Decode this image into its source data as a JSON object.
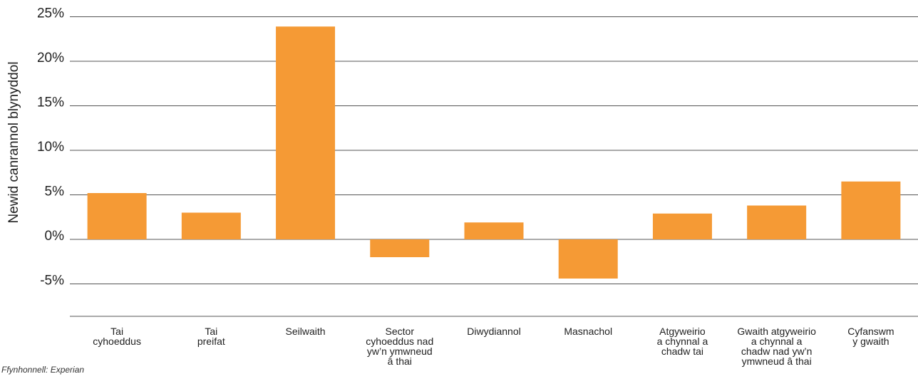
{
  "chart_data": {
    "type": "bar",
    "title": "",
    "xlabel": "",
    "ylabel": "Newid canrannol blynyddol",
    "ylim": [
      -0.09,
      0.25
    ],
    "ytick_values": [
      -0.05,
      0,
      0.05,
      0.1,
      0.15,
      0.2,
      0.25
    ],
    "ytick_labels": [
      "-5%",
      "0%",
      "5%",
      "10%",
      "15%",
      "20%",
      "25%"
    ],
    "grid": "horizontal",
    "legend": "none",
    "bar_color": "#F59A35",
    "categories": [
      [
        "Tai",
        "cyhoeddus"
      ],
      [
        "Tai",
        "preifat"
      ],
      [
        "Seilwaith"
      ],
      [
        "Sector",
        "cyhoeddus nad",
        "yw’n ymwneud",
        "â thai"
      ],
      [
        "Diwydiannol"
      ],
      [
        "Masnachol"
      ],
      [
        "Atgyweirio",
        "a chynnal a",
        "chadw tai"
      ],
      [
        "Gwaith atgyweirio",
        "a chynnal a",
        "chadw nad yw’n",
        "ymwneud â thai"
      ],
      [
        "Cyfanswm",
        "y gwaith"
      ]
    ],
    "values": [
      0.052,
      0.03,
      0.239,
      -0.02,
      0.019,
      -0.044,
      0.029,
      0.038,
      0.065
    ]
  },
  "source": "Ffynhonnell: Experian"
}
